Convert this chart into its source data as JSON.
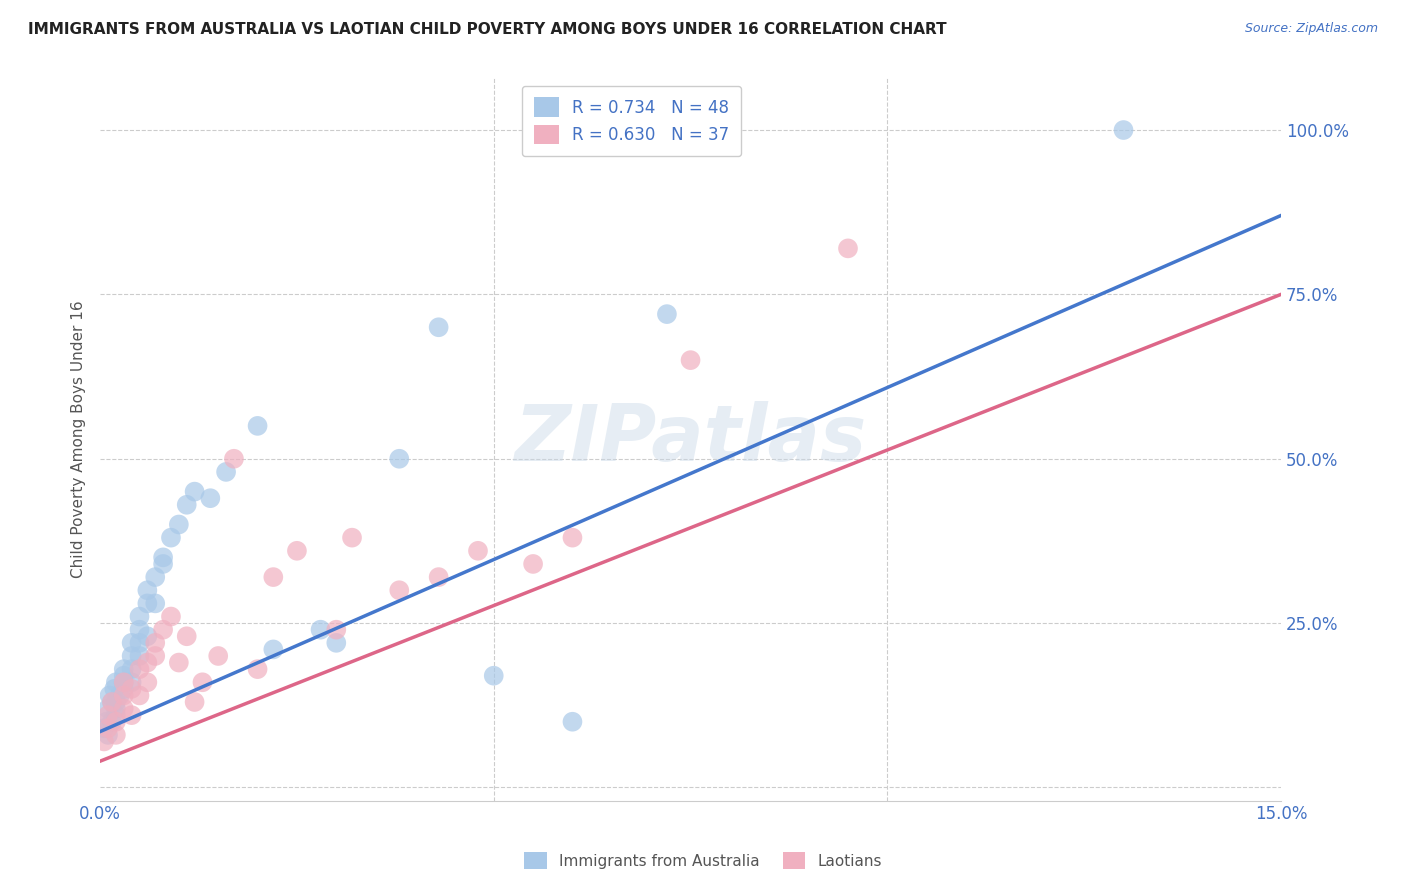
{
  "title": "IMMIGRANTS FROM AUSTRALIA VS LAOTIAN CHILD POVERTY AMONG BOYS UNDER 16 CORRELATION CHART",
  "source": "Source: ZipAtlas.com",
  "ylabel": "Child Poverty Among Boys Under 16",
  "x_min": 0.0,
  "x_max": 0.15,
  "y_min": -0.02,
  "y_max": 1.08,
  "grid_color": "#cccccc",
  "background_color": "#ffffff",
  "blue_color": "#a8c8e8",
  "pink_color": "#f0b0c0",
  "blue_line_color": "#4477cc",
  "pink_line_color": "#dd6688",
  "legend_r_blue": "R = 0.734",
  "legend_n_blue": "N = 48",
  "legend_r_pink": "R = 0.630",
  "legend_n_pink": "N = 37",
  "legend_label_blue": "Immigrants from Australia",
  "legend_label_pink": "Laotians",
  "watermark": "ZIPatlas",
  "title_color": "#222222",
  "source_color": "#4472c4",
  "axis_label_color": "#555555",
  "tick_color": "#4472c4",
  "blue_scatter_x": [
    0.0005,
    0.0008,
    0.001,
    0.001,
    0.0012,
    0.0015,
    0.0015,
    0.0018,
    0.002,
    0.002,
    0.002,
    0.002,
    0.0025,
    0.003,
    0.003,
    0.003,
    0.003,
    0.004,
    0.004,
    0.004,
    0.004,
    0.005,
    0.005,
    0.005,
    0.005,
    0.006,
    0.006,
    0.006,
    0.007,
    0.007,
    0.008,
    0.008,
    0.009,
    0.01,
    0.011,
    0.012,
    0.014,
    0.016,
    0.02,
    0.022,
    0.028,
    0.03,
    0.038,
    0.043,
    0.05,
    0.06,
    0.072,
    0.13
  ],
  "blue_scatter_y": [
    0.09,
    0.1,
    0.08,
    0.12,
    0.14,
    0.1,
    0.13,
    0.15,
    0.12,
    0.16,
    0.13,
    0.11,
    0.14,
    0.16,
    0.18,
    0.15,
    0.17,
    0.18,
    0.2,
    0.16,
    0.22,
    0.24,
    0.2,
    0.26,
    0.22,
    0.28,
    0.23,
    0.3,
    0.32,
    0.28,
    0.34,
    0.35,
    0.38,
    0.4,
    0.43,
    0.45,
    0.44,
    0.48,
    0.55,
    0.21,
    0.24,
    0.22,
    0.5,
    0.7,
    0.17,
    0.1,
    0.72,
    1.0
  ],
  "pink_scatter_x": [
    0.0005,
    0.001,
    0.001,
    0.0015,
    0.002,
    0.002,
    0.003,
    0.003,
    0.003,
    0.004,
    0.004,
    0.005,
    0.005,
    0.006,
    0.006,
    0.007,
    0.007,
    0.008,
    0.009,
    0.01,
    0.011,
    0.012,
    0.013,
    0.015,
    0.017,
    0.02,
    0.022,
    0.025,
    0.03,
    0.032,
    0.038,
    0.043,
    0.048,
    0.055,
    0.06,
    0.075,
    0.095
  ],
  "pink_scatter_y": [
    0.07,
    0.09,
    0.11,
    0.13,
    0.1,
    0.08,
    0.14,
    0.12,
    0.16,
    0.15,
    0.11,
    0.18,
    0.14,
    0.19,
    0.16,
    0.22,
    0.2,
    0.24,
    0.26,
    0.19,
    0.23,
    0.13,
    0.16,
    0.2,
    0.5,
    0.18,
    0.32,
    0.36,
    0.24,
    0.38,
    0.3,
    0.32,
    0.36,
    0.34,
    0.38,
    0.65,
    0.82
  ],
  "blue_line_x": [
    0.0,
    0.15
  ],
  "blue_line_y": [
    0.085,
    0.87
  ],
  "pink_line_x": [
    0.0,
    0.15
  ],
  "pink_line_y": [
    0.04,
    0.75
  ]
}
